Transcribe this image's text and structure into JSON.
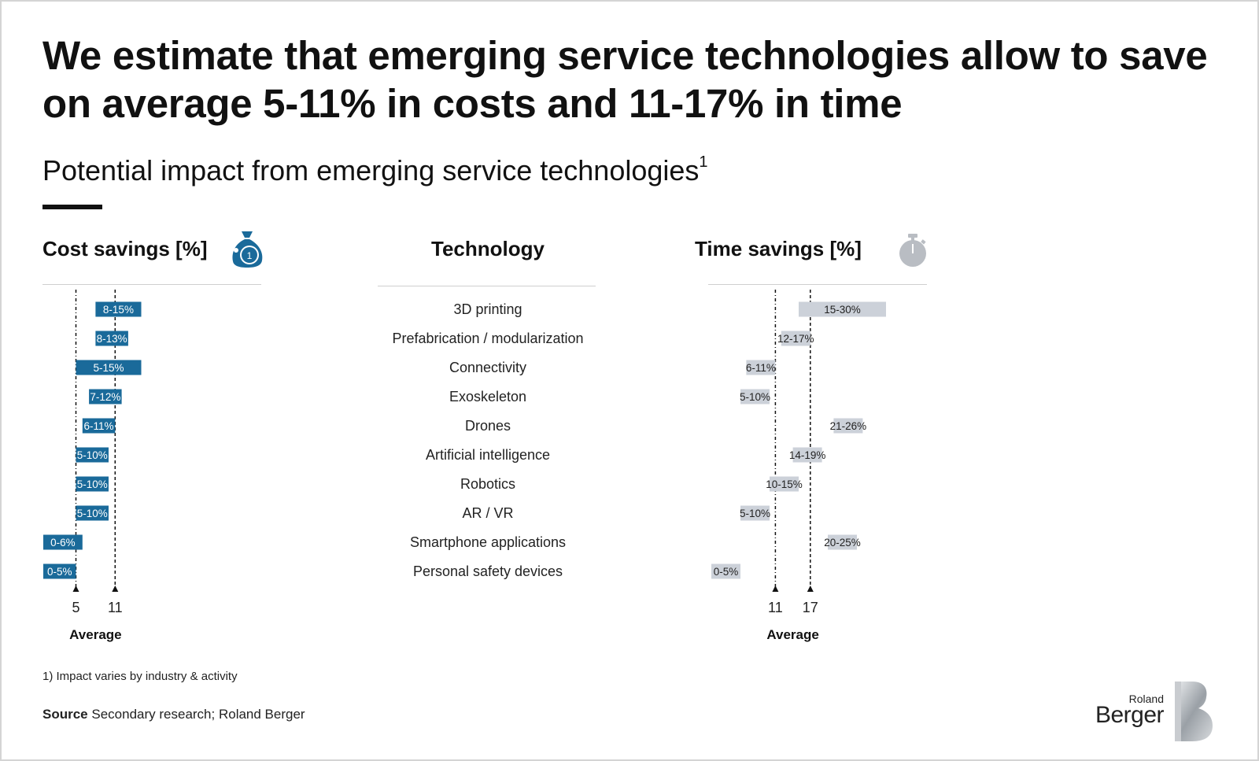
{
  "title": "We estimate that emerging service technologies allow to save on average 5-11% in costs and 11-17% in time",
  "subtitle": "Potential impact from emerging service technologies",
  "subtitle_sup": "1",
  "headers": {
    "cost": "Cost savings [%]",
    "technology": "Technology",
    "time": "Time savings [%]"
  },
  "icons": {
    "cost": "money-bag-icon",
    "time": "stopwatch-icon"
  },
  "colors": {
    "cost_bar": "#1a6a9a",
    "time_bar": "#ccd1d9",
    "text": "#111111"
  },
  "chart_data": [
    {
      "type": "bar",
      "orientation": "horizontal-range",
      "title": "Cost savings [%]",
      "categories": [
        "3D printing",
        "Prefabrication / modularization",
        "Connectivity",
        "Exoskeleton",
        "Drones",
        "Artificial intelligence",
        "Robotics",
        "AR / VR",
        "Smartphone applications",
        "Personal safety devices"
      ],
      "ranges": [
        [
          8,
          15
        ],
        [
          8,
          13
        ],
        [
          5,
          15
        ],
        [
          7,
          12
        ],
        [
          6,
          11
        ],
        [
          5,
          10
        ],
        [
          5,
          10
        ],
        [
          5,
          10
        ],
        [
          0,
          6
        ],
        [
          0,
          5
        ]
      ],
      "labels": [
        "8-15%",
        "8-13%",
        "5-15%",
        "7-12%",
        "6-11%",
        "5-10%",
        "5-10%",
        "5-10%",
        "0-6%",
        "0-5%"
      ],
      "average_markers": [
        5,
        11
      ],
      "average_label": "Average",
      "xlim": [
        0,
        25
      ]
    },
    {
      "type": "bar",
      "orientation": "horizontal-range",
      "title": "Time savings [%]",
      "categories": [
        "3D printing",
        "Prefabrication / modularization",
        "Connectivity",
        "Exoskeleton",
        "Drones",
        "Artificial intelligence",
        "Robotics",
        "AR / VR",
        "Smartphone applications",
        "Personal safety devices"
      ],
      "ranges": [
        [
          15,
          30
        ],
        [
          12,
          17
        ],
        [
          6,
          11
        ],
        [
          5,
          10
        ],
        [
          21,
          26
        ],
        [
          14,
          19
        ],
        [
          10,
          15
        ],
        [
          5,
          10
        ],
        [
          20,
          25
        ],
        [
          0,
          5
        ]
      ],
      "labels": [
        "15-30%",
        "12-17%",
        "6-11%",
        "5-10%",
        "21-26%",
        "14-19%",
        "10-15%",
        "5-10%",
        "20-25%",
        "0-5%"
      ],
      "average_markers": [
        11,
        17
      ],
      "average_label": "Average",
      "xlim": [
        0,
        35
      ]
    }
  ],
  "footnote": "1) Impact varies by industry & activity",
  "source_label": "Source",
  "source_text": "Secondary research; Roland Berger",
  "logo": {
    "line1": "Roland",
    "line2": "Berger"
  }
}
